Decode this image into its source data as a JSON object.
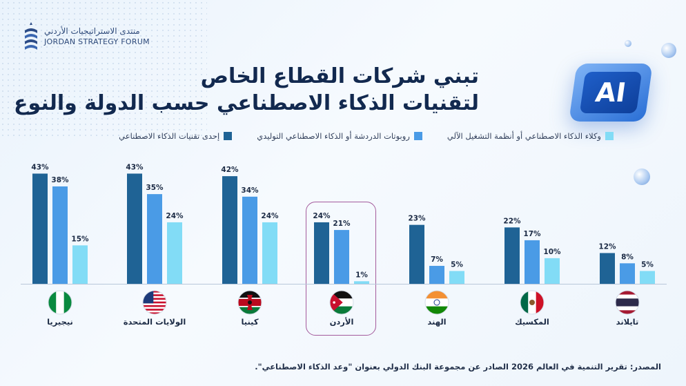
{
  "header": {
    "logo_ar": "منتدى الاستراتيجيات الأردني",
    "logo_en": "JORDAN STRATEGY FORUM",
    "title_line1": "تبني شركات القطاع الخاص",
    "title_line2": "لتقنيات الذكاء الاصطناعي حسب الدولة والنوع",
    "badge_text": "AI"
  },
  "chart_data": {
    "type": "bar",
    "categories": [
      "نيجيريا",
      "الولايات المتحدة",
      "كينيا",
      "الأردن",
      "الهند",
      "المكسيك",
      "تايلاند"
    ],
    "series": [
      {
        "name": "إحدى تقنيات الذكاء الاصطناعي",
        "color": "#1f6395",
        "values": [
          43,
          43,
          42,
          24,
          23,
          22,
          12
        ]
      },
      {
        "name": "روبوتات الدردشة أو الذكاء الاصطناعي التوليدي",
        "color": "#4a9be6",
        "values": [
          38,
          35,
          34,
          21,
          7,
          17,
          8
        ]
      },
      {
        "name": "وكلاء الذكاء الاصطناعي أو أنظمة التشغيل الآلي",
        "color": "#82dcf6",
        "values": [
          15,
          24,
          24,
          1,
          5,
          10,
          5
        ]
      }
    ],
    "value_suffix": "%",
    "ylim": [
      0,
      45
    ],
    "highlight_category": "الأردن",
    "flags": [
      "nigeria-flag-icon",
      "usa-flag-icon",
      "kenya-flag-icon",
      "jordan-flag-icon",
      "india-flag-icon",
      "mexico-flag-icon",
      "thailand-flag-icon"
    ],
    "legend_position": "top"
  },
  "footer": {
    "source": "المصدر: تقرير التنمية في العالم 2026 الصادر عن مجموعة البنك الدولي بعنوان \"وعد الذكاء الاصطناعي\"."
  }
}
